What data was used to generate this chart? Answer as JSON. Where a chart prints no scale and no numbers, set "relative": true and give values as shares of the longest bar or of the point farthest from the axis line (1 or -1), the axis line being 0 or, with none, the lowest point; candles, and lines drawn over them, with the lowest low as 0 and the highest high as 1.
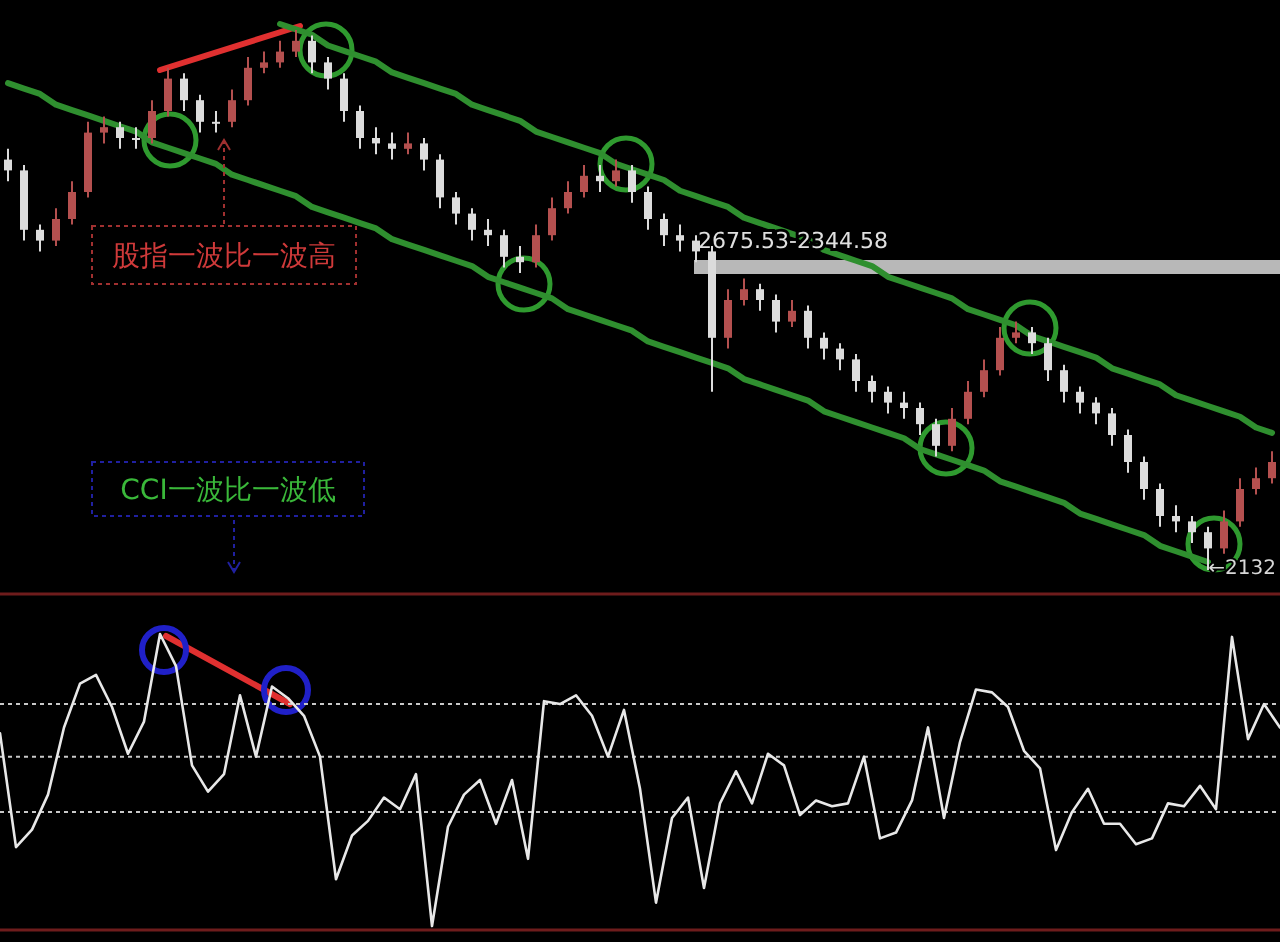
{
  "chart_data": [
    {
      "type": "candlestick",
      "relative": true,
      "categories": [
        null,
        null,
        null,
        null,
        null,
        null,
        null,
        null,
        null,
        null,
        null,
        null,
        null,
        null,
        null,
        null,
        null,
        null,
        null,
        null,
        null,
        null,
        null,
        null,
        null,
        null,
        null,
        null,
        null,
        null,
        null,
        null,
        null,
        null,
        null,
        null,
        null,
        null,
        null,
        null,
        null,
        null,
        null,
        null,
        null,
        null,
        null,
        null,
        null,
        null,
        null,
        null,
        null,
        null,
        null,
        null,
        null,
        null,
        null,
        null,
        null,
        null,
        null,
        null,
        null,
        null,
        null,
        null,
        null,
        null,
        null,
        null,
        null,
        null,
        null,
        null,
        null,
        null,
        null,
        null
      ],
      "ohlc": [
        [
          0.76,
          0.78,
          0.72,
          0.74
        ],
        [
          0.74,
          0.75,
          0.61,
          0.63
        ],
        [
          0.63,
          0.64,
          0.59,
          0.61
        ],
        [
          0.61,
          0.67,
          0.6,
          0.65
        ],
        [
          0.65,
          0.72,
          0.64,
          0.7
        ],
        [
          0.7,
          0.83,
          0.69,
          0.81
        ],
        [
          0.81,
          0.84,
          0.79,
          0.82
        ],
        [
          0.82,
          0.83,
          0.78,
          0.8
        ],
        [
          0.8,
          0.82,
          0.78,
          0.8
        ],
        [
          0.8,
          0.87,
          0.79,
          0.85
        ],
        [
          0.85,
          0.93,
          0.84,
          0.91
        ],
        [
          0.91,
          0.92,
          0.85,
          0.87
        ],
        [
          0.87,
          0.88,
          0.81,
          0.83
        ],
        [
          0.83,
          0.85,
          0.81,
          0.83
        ],
        [
          0.83,
          0.89,
          0.82,
          0.87
        ],
        [
          0.87,
          0.95,
          0.86,
          0.93
        ],
        [
          0.93,
          0.96,
          0.92,
          0.94
        ],
        [
          0.94,
          0.98,
          0.93,
          0.96
        ],
        [
          0.96,
          1.0,
          0.95,
          0.98
        ],
        [
          0.98,
          0.99,
          0.92,
          0.94
        ],
        [
          0.94,
          0.95,
          0.89,
          0.91
        ],
        [
          0.91,
          0.92,
          0.83,
          0.85
        ],
        [
          0.85,
          0.86,
          0.78,
          0.8
        ],
        [
          0.8,
          0.82,
          0.77,
          0.79
        ],
        [
          0.79,
          0.81,
          0.76,
          0.78
        ],
        [
          0.78,
          0.81,
          0.77,
          0.79
        ],
        [
          0.79,
          0.8,
          0.74,
          0.76
        ],
        [
          0.76,
          0.77,
          0.67,
          0.69
        ],
        [
          0.69,
          0.7,
          0.64,
          0.66
        ],
        [
          0.66,
          0.67,
          0.61,
          0.63
        ],
        [
          0.63,
          0.65,
          0.6,
          0.62
        ],
        [
          0.62,
          0.63,
          0.56,
          0.58
        ],
        [
          0.58,
          0.6,
          0.55,
          0.57
        ],
        [
          0.57,
          0.64,
          0.56,
          0.62
        ],
        [
          0.62,
          0.69,
          0.61,
          0.67
        ],
        [
          0.67,
          0.72,
          0.66,
          0.7
        ],
        [
          0.7,
          0.75,
          0.69,
          0.73
        ],
        [
          0.73,
          0.75,
          0.7,
          0.72
        ],
        [
          0.72,
          0.76,
          0.71,
          0.74
        ],
        [
          0.74,
          0.75,
          0.68,
          0.7
        ],
        [
          0.7,
          0.71,
          0.63,
          0.65
        ],
        [
          0.65,
          0.66,
          0.6,
          0.62
        ],
        [
          0.62,
          0.64,
          0.59,
          0.61
        ],
        [
          0.61,
          0.62,
          0.57,
          0.59
        ],
        [
          0.59,
          0.6,
          0.33,
          0.43
        ],
        [
          0.43,
          0.52,
          0.41,
          0.5
        ],
        [
          0.5,
          0.54,
          0.49,
          0.52
        ],
        [
          0.52,
          0.53,
          0.48,
          0.5
        ],
        [
          0.5,
          0.51,
          0.44,
          0.46
        ],
        [
          0.46,
          0.5,
          0.45,
          0.48
        ],
        [
          0.48,
          0.49,
          0.41,
          0.43
        ],
        [
          0.43,
          0.44,
          0.39,
          0.41
        ],
        [
          0.41,
          0.42,
          0.37,
          0.39
        ],
        [
          0.39,
          0.4,
          0.33,
          0.35
        ],
        [
          0.35,
          0.36,
          0.31,
          0.33
        ],
        [
          0.33,
          0.34,
          0.29,
          0.31
        ],
        [
          0.31,
          0.33,
          0.28,
          0.3
        ],
        [
          0.3,
          0.31,
          0.25,
          0.27
        ],
        [
          0.27,
          0.28,
          0.21,
          0.23
        ],
        [
          0.23,
          0.3,
          0.22,
          0.28
        ],
        [
          0.28,
          0.35,
          0.27,
          0.33
        ],
        [
          0.33,
          0.39,
          0.32,
          0.37
        ],
        [
          0.37,
          0.45,
          0.36,
          0.43
        ],
        [
          0.43,
          0.46,
          0.42,
          0.44
        ],
        [
          0.44,
          0.45,
          0.4,
          0.42
        ],
        [
          0.42,
          0.43,
          0.35,
          0.37
        ],
        [
          0.37,
          0.38,
          0.31,
          0.33
        ],
        [
          0.33,
          0.34,
          0.29,
          0.31
        ],
        [
          0.31,
          0.32,
          0.27,
          0.29
        ],
        [
          0.29,
          0.3,
          0.23,
          0.25
        ],
        [
          0.25,
          0.26,
          0.18,
          0.2
        ],
        [
          0.2,
          0.21,
          0.13,
          0.15
        ],
        [
          0.15,
          0.16,
          0.08,
          0.1
        ],
        [
          0.1,
          0.12,
          0.07,
          0.09
        ],
        [
          0.09,
          0.1,
          0.05,
          0.07
        ],
        [
          0.07,
          0.08,
          0.0,
          0.04
        ],
        [
          0.04,
          0.11,
          0.03,
          0.09
        ],
        [
          0.09,
          0.17,
          0.08,
          0.15
        ],
        [
          0.15,
          0.19,
          0.14,
          0.17
        ],
        [
          0.17,
          0.22,
          0.16,
          0.2
        ]
      ],
      "colors": [
        "#dcdcdc",
        "#dcdcdc",
        "#dcdcdc",
        "#b4504f",
        "#b4504f",
        "#b4504f",
        "#b4504f",
        "#dcdcdc",
        "#dcdcdc",
        "#b4504f",
        "#b4504f",
        "#dcdcdc",
        "#dcdcdc",
        "#dcdcdc",
        "#b4504f",
        "#b4504f",
        "#b4504f",
        "#b4504f",
        "#b4504f",
        "#dcdcdc",
        "#dcdcdc",
        "#dcdcdc",
        "#dcdcdc",
        "#dcdcdc",
        "#dcdcdc",
        "#b4504f",
        "#dcdcdc",
        "#dcdcdc",
        "#dcdcdc",
        "#dcdcdc",
        "#dcdcdc",
        "#dcdcdc",
        "#dcdcdc",
        "#b4504f",
        "#b4504f",
        "#b4504f",
        "#b4504f",
        "#dcdcdc",
        "#b4504f",
        "#dcdcdc",
        "#dcdcdc",
        "#dcdcdc",
        "#dcdcdc",
        "#dcdcdc",
        "#dcdcdc",
        "#b4504f",
        "#b4504f",
        "#dcdcdc",
        "#dcdcdc",
        "#b4504f",
        "#dcdcdc",
        "#dcdcdc",
        "#dcdcdc",
        "#dcdcdc",
        "#dcdcdc",
        "#dcdcdc",
        "#dcdcdc",
        "#dcdcdc",
        "#dcdcdc",
        "#b4504f",
        "#b4504f",
        "#b4504f",
        "#b4504f",
        "#b4504f",
        "#dcdcdc",
        "#dcdcdc",
        "#dcdcdc",
        "#dcdcdc",
        "#dcdcdc",
        "#dcdcdc",
        "#dcdcdc",
        "#dcdcdc",
        "#dcdcdc",
        "#dcdcdc",
        "#dcdcdc",
        "#dcdcdc",
        "#b4504f",
        "#b4504f",
        "#b4504f",
        "#b4504f"
      ],
      "annotations": [
        "股指一波比一波高",
        "CCI一波比一波低",
        "2675.53-2344.58",
        "←2132"
      ]
    },
    {
      "type": "line",
      "relative": true,
      "categories": [
        null,
        null,
        null,
        null,
        null,
        null,
        null,
        null,
        null,
        null,
        null,
        null,
        null,
        null,
        null,
        null,
        null,
        null,
        null,
        null,
        null,
        null,
        null,
        null,
        null,
        null,
        null,
        null,
        null,
        null,
        null,
        null,
        null,
        null,
        null,
        null,
        null,
        null,
        null,
        null,
        null,
        null,
        null,
        null,
        null,
        null,
        null,
        null,
        null,
        null,
        null,
        null,
        null,
        null,
        null,
        null,
        null,
        null,
        null,
        null,
        null,
        null,
        null,
        null,
        null,
        null,
        null,
        null,
        null,
        null,
        null,
        null,
        null,
        null,
        null,
        null,
        null,
        null,
        null,
        null
      ],
      "series": [
        {
          "color": "#2f8f2f",
          "values": [
            null,
            null,
            null,
            null,
            null,
            null,
            null,
            null,
            null,
            null,
            null,
            null,
            null,
            null,
            null,
            null,
            null,
            1.0,
            0.99,
            0.98,
            0.96,
            0.95,
            0.94,
            0.93,
            0.91,
            0.9,
            0.89,
            0.88,
            0.87,
            0.85,
            0.84,
            0.83,
            0.82,
            0.8,
            0.79,
            0.78,
            0.77,
            0.76,
            0.74,
            0.73,
            0.72,
            0.71,
            0.69,
            0.68,
            0.67,
            0.66,
            0.64,
            0.63,
            0.62,
            0.61,
            0.6,
            0.58,
            0.57,
            0.56,
            0.55,
            0.53,
            0.52,
            0.51,
            0.5,
            0.49,
            0.47,
            0.46,
            0.45,
            0.44,
            0.42,
            0.41,
            0.4,
            0.39,
            0.38,
            0.36,
            0.35,
            0.34,
            0.33,
            0.31,
            0.3,
            0.29,
            0.28,
            0.27,
            0.25,
            0.24
          ]
        },
        {
          "color": "#2f8f2f",
          "values": [
            0.89,
            0.88,
            0.87,
            0.85,
            0.84,
            0.83,
            0.82,
            0.81,
            0.8,
            0.78,
            0.77,
            0.76,
            0.75,
            0.74,
            0.72,
            0.71,
            0.7,
            0.69,
            0.68,
            0.66,
            0.65,
            0.64,
            0.63,
            0.62,
            0.6,
            0.59,
            0.58,
            0.57,
            0.56,
            0.55,
            0.53,
            0.52,
            0.51,
            0.5,
            0.49,
            0.47,
            0.46,
            0.45,
            0.44,
            0.43,
            0.41,
            0.4,
            0.39,
            0.38,
            0.37,
            0.36,
            0.34,
            0.33,
            0.32,
            0.31,
            0.3,
            0.28,
            0.27,
            0.26,
            0.25,
            0.24,
            0.23,
            0.21,
            0.2,
            0.19,
            0.18,
            0.17,
            0.15,
            0.14,
            0.13,
            0.12,
            0.11,
            0.09,
            0.08,
            0.07,
            0.06,
            0.05,
            0.03,
            0.02,
            0.01,
            0.0,
            null,
            null,
            null,
            null
          ]
        }
      ]
    },
    {
      "type": "line",
      "relative": true,
      "categories": [
        null,
        null,
        null,
        null,
        null,
        null,
        null,
        null,
        null,
        null,
        null,
        null,
        null,
        null,
        null,
        null,
        null,
        null,
        null,
        null,
        null,
        null,
        null,
        null,
        null,
        null,
        null,
        null,
        null,
        null,
        null,
        null,
        null,
        null,
        null,
        null,
        null,
        null,
        null,
        null,
        null,
        null,
        null,
        null,
        null,
        null,
        null,
        null,
        null,
        null,
        null,
        null,
        null,
        null,
        null,
        null,
        null,
        null,
        null,
        null,
        null,
        null,
        null,
        null,
        null,
        null,
        null,
        null,
        null,
        null,
        null,
        null,
        null,
        null,
        null,
        null,
        null,
        null,
        null,
        null,
        null
      ],
      "series": [
        {
          "color": "#e8e8e8",
          "values": [
            0.66,
            0.27,
            0.33,
            0.45,
            0.68,
            0.83,
            0.86,
            0.75,
            0.59,
            0.7,
            1.0,
            0.89,
            0.55,
            0.46,
            0.52,
            0.79,
            0.58,
            0.82,
            0.78,
            0.72,
            0.58,
            0.16,
            0.31,
            0.36,
            0.44,
            0.4,
            0.52,
            0.0,
            0.34,
            0.45,
            0.5,
            0.35,
            0.5,
            0.23,
            0.77,
            0.76,
            0.79,
            0.72,
            0.58,
            0.74,
            0.47,
            0.08,
            0.37,
            0.44,
            0.13,
            0.42,
            0.53,
            0.42,
            0.59,
            0.55,
            0.38,
            0.43,
            0.41,
            0.42,
            0.58,
            0.3,
            0.32,
            0.43,
            0.68,
            0.37,
            0.63,
            0.81,
            0.8,
            0.75,
            0.6,
            0.54,
            0.26,
            0.39,
            0.47,
            0.35,
            0.35,
            0.28,
            0.3,
            0.42,
            0.41,
            0.48,
            0.4,
            0.99,
            0.64,
            0.76,
            0.68
          ]
        }
      ],
      "ref_lines": [
        {
          "axis": "y",
          "value": 0.76,
          "line_style": "dotted",
          "color": "#c8c8c8"
        },
        {
          "axis": "y",
          "value": 0.58,
          "line_style": "dotted",
          "color": "#c8c8c8"
        },
        {
          "axis": "y",
          "value": 0.39,
          "line_style": "dotted",
          "color": "#c8c8c8"
        }
      ]
    }
  ]
}
